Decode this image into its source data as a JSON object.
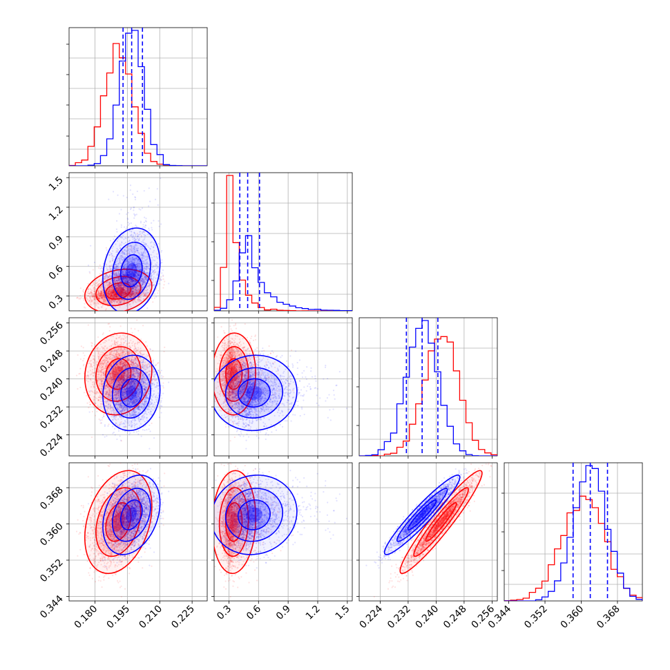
{
  "chart_data": {
    "type": "corner",
    "parameters": [
      {
        "range": [
          0.168,
          0.232
        ],
        "ticks": [
          0.18,
          0.195,
          0.21,
          0.225
        ],
        "tick_labels": [
          "0.180",
          "0.195",
          "0.210",
          "0.225"
        ]
      },
      {
        "range": [
          0.15,
          1.55
        ],
        "ticks": [
          0.3,
          0.6,
          0.9,
          1.2,
          1.5
        ],
        "tick_labels": [
          "0.3",
          "0.6",
          "0.9",
          "1.2",
          "1.5"
        ]
      },
      {
        "range": [
          0.218,
          0.2575
        ],
        "ticks": [
          0.224,
          0.232,
          0.24,
          0.248,
          0.256
        ],
        "tick_labels": [
          "0.224",
          "0.232",
          "0.240",
          "0.248",
          "0.256"
        ]
      },
      {
        "range": [
          0.343,
          0.3735
        ],
        "ticks": [
          0.344,
          0.352,
          0.36,
          0.368
        ],
        "tick_labels": [
          "0.344",
          "0.352",
          "0.360",
          "0.368"
        ]
      }
    ],
    "series": [
      {
        "color": "#ff0000",
        "mean": [
          0.191,
          0.33,
          0.2415,
          0.3605
        ],
        "sd": [
          0.0065,
          0.05,
          0.0048,
          0.0048
        ],
        "corr": [
          [
            1,
            0.25,
            0.1,
            0.25
          ],
          [
            0.25,
            1,
            -0.1,
            0.0
          ],
          [
            0.1,
            -0.1,
            1,
            0.9
          ],
          [
            0.25,
            0.0,
            0.9,
            1
          ]
        ],
        "quantile_lines": []
      },
      {
        "color": "#0000ff",
        "mean": [
          0.197,
          0.51,
          0.236,
          0.362
        ],
        "sd": [
          0.0055,
          0.1,
          0.0045,
          0.0038
        ],
        "corr": [
          [
            1,
            0.2,
            0.1,
            0.3
          ],
          [
            0.2,
            1,
            -0.15,
            0.0
          ],
          [
            0.1,
            -0.15,
            1,
            0.9
          ],
          [
            0.3,
            0.0,
            0.9,
            1
          ]
        ],
        "quantile_lines": [
          [
            0.193,
            0.197,
            0.202
          ],
          [
            0.41,
            0.49,
            0.61
          ],
          [
            0.2315,
            0.236,
            0.2405
          ],
          [
            0.3582,
            0.362,
            0.3658
          ]
        ]
      }
    ],
    "grid": true,
    "legend": "none"
  }
}
